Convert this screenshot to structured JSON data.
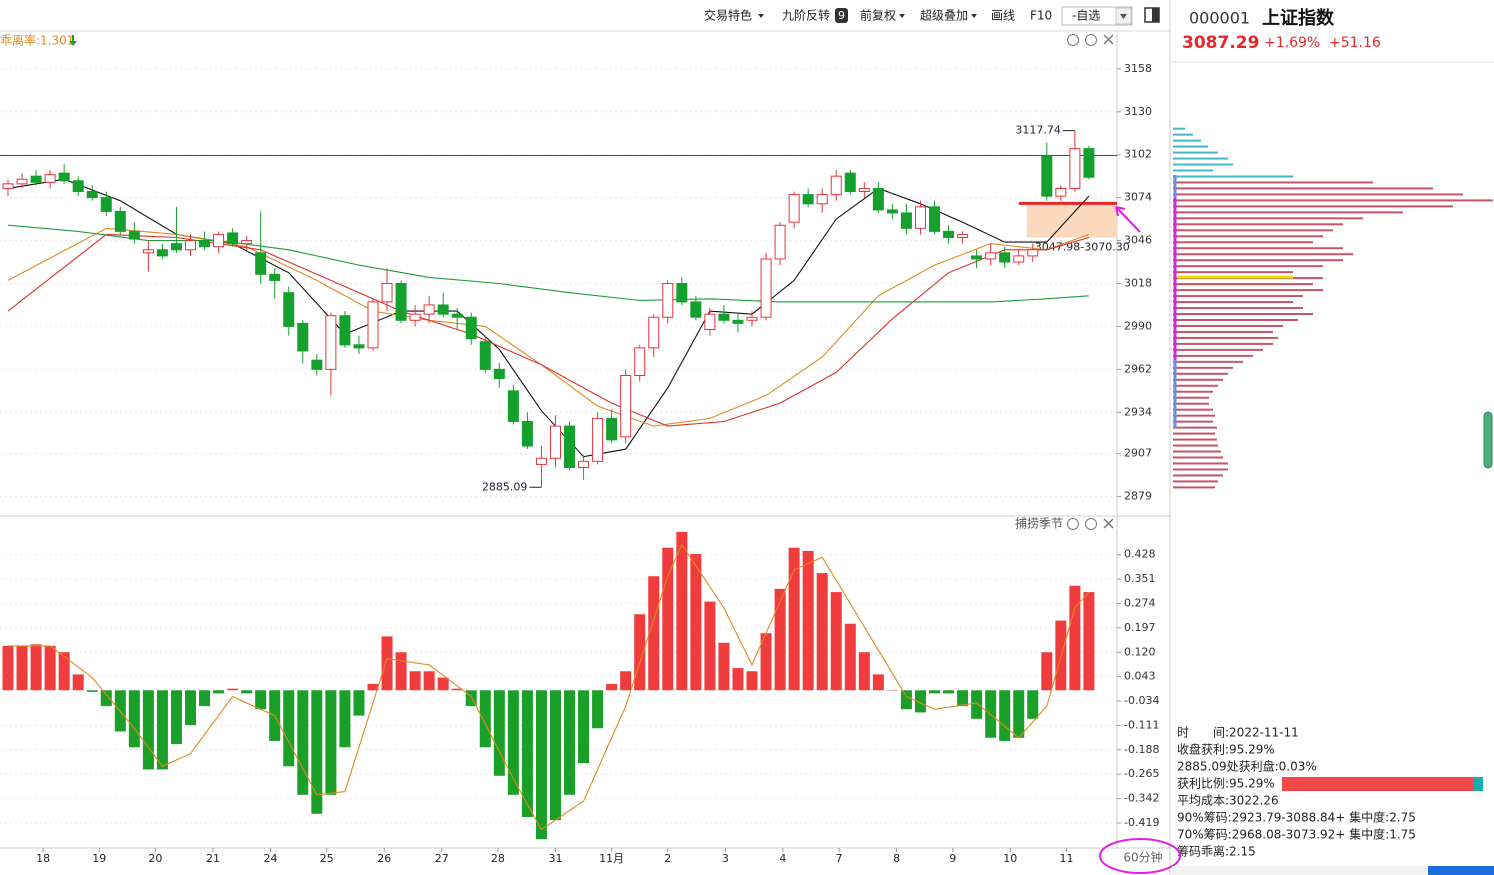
{
  "toolbar": {
    "items": [
      "交易特色",
      "九阶反转",
      "前复权",
      "超级叠加",
      "画线",
      "F10",
      "-自选"
    ],
    "badge": "9"
  },
  "quote": {
    "code": "000001",
    "name": "上证指数",
    "price": "3087.29",
    "change_pct": "+1.69%",
    "change": "+51.16"
  },
  "period": "60分钟",
  "chip_info": [
    "时　　间:2022-11-11",
    "收盘获利:95.29%",
    "2885.09处获利盘:0.03%",
    "获利比例:95.29%",
    "平均成本:3022.26",
    "90%筹码:2923.79-3088.84+ 集中度:2.75",
    "70%筹码:2968.08-3073.92+ 集中度:1.75",
    "筹码乖离:2.15"
  ],
  "chart_data": [
    {
      "type": "candlestick",
      "indicator_label": "乖离率:1.301",
      "x": [
        0,
        1,
        2,
        3,
        4,
        5,
        6,
        7,
        8,
        9,
        10,
        11,
        12,
        13,
        14,
        15,
        16,
        17,
        18,
        19,
        20,
        21,
        22,
        23,
        24,
        25,
        26,
        27,
        28,
        29,
        30,
        31,
        32,
        33,
        34,
        35,
        36,
        37,
        38,
        39,
        40,
        41,
        42,
        43,
        44,
        45,
        46,
        47,
        48,
        49,
        50,
        51,
        52,
        53,
        54,
        55,
        56,
        57,
        58,
        59,
        60,
        61,
        62,
        63,
        64,
        65,
        66,
        67,
        68,
        69,
        70,
        71,
        72,
        73,
        74,
        75,
        76,
        77
      ],
      "open": [
        3080,
        3083,
        3088,
        3084,
        3090,
        3085,
        3078,
        3074,
        3065,
        3052,
        3038,
        3040,
        3044,
        3040,
        3046,
        3042,
        3051,
        3044,
        3038,
        3024,
        3012,
        2992,
        2968,
        2962,
        2997,
        2978,
        2976,
        3006,
        3018,
        2994,
        2998,
        3004,
        2998,
        2996,
        2980,
        2962,
        2948,
        2928,
        2900,
        2904,
        2925,
        2898,
        2902,
        2930,
        2918,
        2958,
        2976,
        2996,
        3018,
        3006,
        2988,
        2998,
        2994,
        2994,
        2996,
        3034,
        3058,
        3076,
        3070,
        3076,
        3090,
        3078,
        3080,
        3066,
        3064,
        3054,
        3068,
        3052,
        3048,
        3036,
        3034,
        3038,
        3032,
        3036,
        3101,
        3075,
        3080,
        3106
      ],
      "high": [
        3086,
        3090,
        3092,
        3092,
        3096,
        3088,
        3082,
        3078,
        3068,
        3058,
        3046,
        3044,
        3068,
        3050,
        3052,
        3052,
        3054,
        3049,
        3065,
        3028,
        3016,
        2994,
        2972,
        2999,
        3000,
        2984,
        3008,
        3028,
        3020,
        3004,
        3010,
        3012,
        3002,
        2999,
        2984,
        2966,
        2952,
        2934,
        2912,
        2932,
        2928,
        2906,
        2934,
        2936,
        2962,
        2978,
        2998,
        3020,
        3022,
        3010,
        3002,
        3004,
        2998,
        3000,
        3038,
        3058,
        3078,
        3080,
        3080,
        3092,
        3092,
        3084,
        3084,
        3070,
        3070,
        3072,
        3072,
        3056,
        3052,
        3040,
        3044,
        3042,
        3040,
        3044,
        3110,
        3082,
        3117.74,
        3108
      ],
      "low": [
        3075,
        3080,
        3082,
        3080,
        3083,
        3075,
        3072,
        3062,
        3050,
        3044,
        3026,
        3034,
        3038,
        3036,
        3040,
        3038,
        3042,
        3040,
        3018,
        3008,
        2984,
        2966,
        2958,
        2945,
        2976,
        2972,
        2974,
        3000,
        2992,
        2990,
        2992,
        2996,
        2988,
        2978,
        2960,
        2950,
        2926,
        2910,
        2885.09,
        2898,
        2896,
        2890,
        2900,
        2914,
        2914,
        2954,
        2970,
        2992,
        3004,
        2994,
        2984,
        2992,
        2986,
        2990,
        2994,
        3030,
        3054,
        3068,
        3064,
        3072,
        3076,
        3074,
        3064,
        3060,
        3050,
        3050,
        3050,
        3044,
        3044,
        3028,
        3030,
        3028,
        3030,
        3032,
        3072,
        3072,
        3078,
        3086
      ],
      "close": [
        3083,
        3086,
        3084,
        3089,
        3085,
        3078,
        3074,
        3065,
        3052,
        3047,
        3040,
        3036,
        3040,
        3046,
        3042,
        3050,
        3044,
        3046,
        3024,
        3020,
        2990,
        2974,
        2962,
        2997,
        2978,
        2976,
        3006,
        3018,
        2994,
        2998,
        3004,
        2998,
        2996,
        2982,
        2962,
        2956,
        2928,
        2912,
        2904,
        2925,
        2898,
        2902,
        2930,
        2916,
        2958,
        2976,
        2996,
        3018,
        3006,
        2996,
        2998,
        2994,
        2992,
        2996,
        3034,
        3056,
        3076,
        3070,
        3076,
        3088,
        3078,
        3080,
        3066,
        3064,
        3054,
        3068,
        3052,
        3048,
        3050,
        3034,
        3038,
        3032,
        3036,
        3040,
        3075,
        3080,
        3106,
        3087.29
      ],
      "colors": {
        "up": "#e8343c",
        "down": "#14a02c"
      },
      "xlim": [
        -0.57,
        79.0
      ],
      "xticks": [
        {
          "value": 2.5,
          "label": "18"
        },
        {
          "value": 6.5,
          "label": "19"
        },
        {
          "value": 10.5,
          "label": "20"
        },
        {
          "value": 14.6,
          "label": "21"
        },
        {
          "value": 18.7,
          "label": "24"
        },
        {
          "value": 22.7,
          "label": "25"
        },
        {
          "value": 26.8,
          "label": "26"
        },
        {
          "value": 30.9,
          "label": "27"
        },
        {
          "value": 34.9,
          "label": "28"
        },
        {
          "value": 39,
          "label": "31"
        },
        {
          "value": 43,
          "label": "11月"
        },
        {
          "value": 47,
          "label": "2"
        },
        {
          "value": 51.1,
          "label": "3"
        },
        {
          "value": 55.2,
          "label": "4"
        },
        {
          "value": 59.2,
          "label": "7"
        },
        {
          "value": 63.3,
          "label": "8"
        },
        {
          "value": 67.3,
          "label": "9"
        },
        {
          "value": 71.4,
          "label": "10"
        },
        {
          "value": 75.4,
          "label": "11"
        }
      ],
      "ylim": [
        2867,
        3182.7
      ],
      "yticks": [
        3158,
        3130,
        3102,
        3074,
        3046,
        3018,
        2990,
        2962,
        2934,
        2907,
        2879
      ],
      "grid": true,
      "hline": {
        "value": 3101.5,
        "color": "#8a3050"
      },
      "zone": {
        "low": 3047.98,
        "high": 3070.3,
        "label": "3047.98-3070.30",
        "color": "#fcd9bd",
        "edge": "#e8262a"
      },
      "series": [
        {
          "color": "#111111",
          "x": [
            0,
            4,
            8,
            12,
            16,
            20,
            24,
            28,
            32,
            35,
            38,
            41,
            44,
            47,
            50,
            53,
            56,
            59,
            62,
            65,
            68,
            71,
            74,
            77
          ],
          "values": [
            3080,
            3086,
            3072,
            3050,
            3044,
            3025,
            2985,
            3000,
            3000,
            2975,
            2935,
            2905,
            2910,
            2950,
            3000,
            2998,
            3020,
            3060,
            3080,
            3070,
            3058,
            3045,
            3045,
            3075
          ]
        },
        {
          "color": "#e08a1e",
          "x": [
            0,
            7,
            12,
            17,
            22,
            26,
            30,
            34,
            38,
            42,
            46,
            50,
            54,
            58,
            62,
            66,
            70,
            74,
            77
          ],
          "values": [
            3020,
            3054,
            3050,
            3042,
            3020,
            3000,
            2994,
            2990,
            2965,
            2938,
            2925,
            2930,
            2945,
            2970,
            3010,
            3030,
            3044,
            3040,
            3050
          ]
        },
        {
          "color": "#d9302c",
          "x": [
            0,
            7,
            12,
            18,
            23,
            28,
            33,
            38,
            43,
            47,
            51,
            55,
            59,
            63,
            67,
            71,
            74,
            77
          ],
          "values": [
            3000,
            3050,
            3048,
            3040,
            3020,
            3000,
            2985,
            2965,
            2940,
            2925,
            2928,
            2940,
            2960,
            2995,
            3025,
            3040,
            3040,
            3048
          ]
        },
        {
          "color": "#1f9a3a",
          "x": [
            0,
            5,
            10,
            15,
            20,
            25,
            30,
            35,
            40,
            45,
            50,
            55,
            60,
            65,
            70,
            74,
            77
          ],
          "values": [
            3056,
            3052,
            3046,
            3046,
            3040,
            3030,
            3022,
            3018,
            3012,
            3007,
            3008,
            3006,
            3006,
            3006,
            3006,
            3008,
            3010
          ]
        }
      ]
    },
    {
      "type": "bar",
      "title": "捕捞季节",
      "x": [
        0,
        1,
        2,
        3,
        4,
        5,
        6,
        7,
        8,
        9,
        10,
        11,
        12,
        13,
        14,
        15,
        16,
        17,
        18,
        19,
        20,
        21,
        22,
        23,
        24,
        25,
        26,
        27,
        28,
        29,
        30,
        31,
        32,
        33,
        34,
        35,
        36,
        37,
        38,
        39,
        40,
        41,
        42,
        43,
        44,
        45,
        46,
        47,
        48,
        49,
        50,
        51,
        52,
        53,
        54,
        55,
        56,
        57,
        58,
        59,
        60,
        61,
        62,
        63,
        64,
        65,
        66,
        67,
        68,
        69,
        70,
        71,
        72,
        73,
        74,
        75,
        76,
        77
      ],
      "values": [
        0.14,
        0.14,
        0.145,
        0.14,
        0.12,
        0.05,
        -0.005,
        -0.05,
        -0.13,
        -0.18,
        -0.25,
        -0.25,
        -0.17,
        -0.11,
        -0.05,
        -0.01,
        0.005,
        -0.01,
        -0.06,
        -0.16,
        -0.24,
        -0.33,
        -0.39,
        -0.33,
        -0.18,
        -0.08,
        0.02,
        0.17,
        0.12,
        0.06,
        0.06,
        0.04,
        0.005,
        -0.05,
        -0.18,
        -0.27,
        -0.33,
        -0.4,
        -0.47,
        -0.41,
        -0.33,
        -0.23,
        -0.12,
        0.02,
        0.06,
        0.24,
        0.36,
        0.45,
        0.5,
        0.43,
        0.28,
        0.15,
        0.07,
        0.06,
        0.18,
        0.32,
        0.45,
        0.44,
        0.37,
        0.31,
        0.21,
        0.12,
        0.05,
        0.0,
        -0.06,
        -0.07,
        -0.01,
        -0.01,
        -0.05,
        -0.09,
        -0.15,
        -0.16,
        -0.15,
        -0.09,
        0.12,
        0.22,
        0.33,
        0.31
      ],
      "colors": {
        "up": "#f03c3c",
        "down": "#1a9f29"
      },
      "xlim": [
        -0.57,
        79.0
      ],
      "ylim": [
        -0.498,
        0.547
      ],
      "yticks": [
        0.428,
        0.351,
        0.274,
        0.197,
        {
          "value": 0.12,
          "label": "0.120"
        },
        0.043,
        -0.034,
        -0.111,
        -0.188,
        -0.265,
        -0.342,
        -0.419
      ],
      "series": [
        {
          "color": "#e08a1e",
          "x": [
            0,
            3,
            6,
            9,
            11,
            13,
            16,
            19,
            22,
            24,
            27,
            30,
            33,
            36,
            38,
            41,
            44,
            47,
            48,
            51,
            53,
            56,
            58,
            61,
            64,
            66,
            69,
            72,
            74,
            76,
            77
          ],
          "values": [
            0.14,
            0.14,
            0.04,
            -0.12,
            -0.24,
            -0.2,
            -0.02,
            -0.08,
            -0.33,
            -0.32,
            0.1,
            0.08,
            -0.02,
            -0.28,
            -0.44,
            -0.35,
            -0.05,
            0.36,
            0.46,
            0.26,
            0.08,
            0.38,
            0.42,
            0.2,
            -0.02,
            -0.06,
            -0.04,
            -0.15,
            -0.05,
            0.26,
            0.31
          ]
        }
      ]
    },
    {
      "type": "profile",
      "y": [
        3119.0,
        3115.1,
        3111.2,
        3107.3,
        3103.4,
        3099.5,
        3095.6,
        3091.7,
        3087.8,
        3083.9,
        3080.0,
        3076.1,
        3072.2,
        3068.3,
        3064.4,
        3060.5,
        3056.6,
        3052.7,
        3048.8,
        3044.9,
        3041.0,
        3037.1,
        3033.2,
        3029.3,
        3025.4,
        3021.5,
        3017.6,
        3013.7,
        3009.8,
        3005.9,
        3002.0,
        2998.1,
        2994.2,
        2990.3,
        2986.4,
        2982.5,
        2978.6,
        2974.7,
        2970.8,
        2966.9,
        2963.0,
        2959.1,
        2955.2,
        2951.3,
        2947.4,
        2943.5,
        2939.6,
        2935.7,
        2931.8,
        2927.9,
        2924.0,
        2920.1,
        2916.2,
        2912.3,
        2908.4,
        2904.5,
        2900.6,
        2896.7,
        2892.8,
        2888.9,
        2885.0
      ],
      "values": [
        12,
        20,
        28,
        35,
        45,
        55,
        60,
        40,
        120,
        200,
        260,
        290,
        320,
        280,
        230,
        190,
        170,
        160,
        150,
        140,
        170,
        180,
        170,
        150,
        120,
        150,
        140,
        150,
        130,
        120,
        130,
        140,
        125,
        110,
        100,
        105,
        100,
        90,
        80,
        70,
        60,
        55,
        50,
        45,
        40,
        36,
        36,
        40,
        42,
        40,
        44,
        42,
        44,
        45,
        48,
        50,
        55,
        55,
        50,
        45,
        42
      ],
      "xlim": [
        0,
        320
      ],
      "ylim": [
        2867,
        3182.7
      ],
      "colors": {
        "above": "#45b6c6",
        "below": "#c4546a",
        "avg": "#e6e600",
        "range70": "#d02ad0",
        "range90": "#6a8ee0"
      },
      "avg_cost": 3022.26,
      "range90": [
        2923.79,
        3088.84
      ],
      "range70": [
        2968.08,
        3073.92
      ]
    }
  ]
}
